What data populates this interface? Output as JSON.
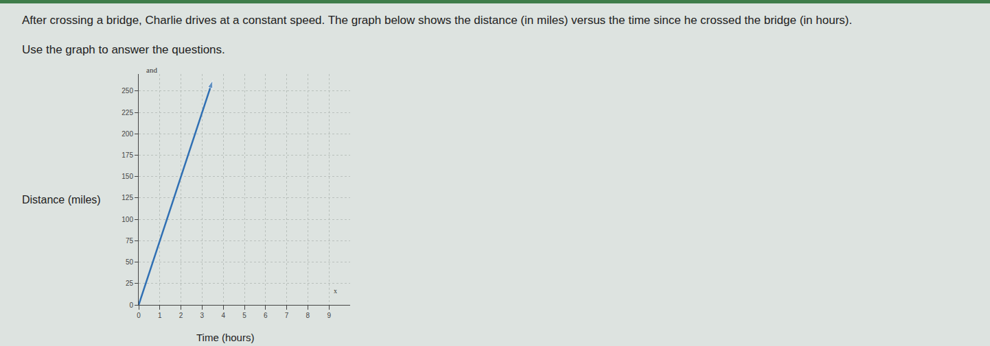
{
  "question": {
    "text": "After crossing a bridge, Charlie drives at a constant speed. The graph below shows the distance (in miles) versus the time since he crossed the bridge (in hours).",
    "instruction": "Use the graph to answer the questions."
  },
  "chart_data": {
    "type": "line",
    "x": [
      0,
      3.5
    ],
    "values": [
      0,
      262.5
    ],
    "color": "#2f6fb3",
    "xlabel": "Time (hours)",
    "ylabel": "Distance (miles)",
    "xlim": [
      0,
      10
    ],
    "ylim": [
      0,
      270
    ],
    "xticks": [
      0,
      1,
      2,
      3,
      4,
      5,
      6,
      7,
      8,
      9
    ],
    "yticks": [
      0,
      25,
      50,
      75,
      100,
      125,
      150,
      175,
      200,
      225,
      250
    ],
    "grid": true,
    "marker": "arrow",
    "annotations": [
      {
        "text": "and",
        "axis": "y"
      },
      {
        "text": "x",
        "axis": "x"
      }
    ]
  }
}
